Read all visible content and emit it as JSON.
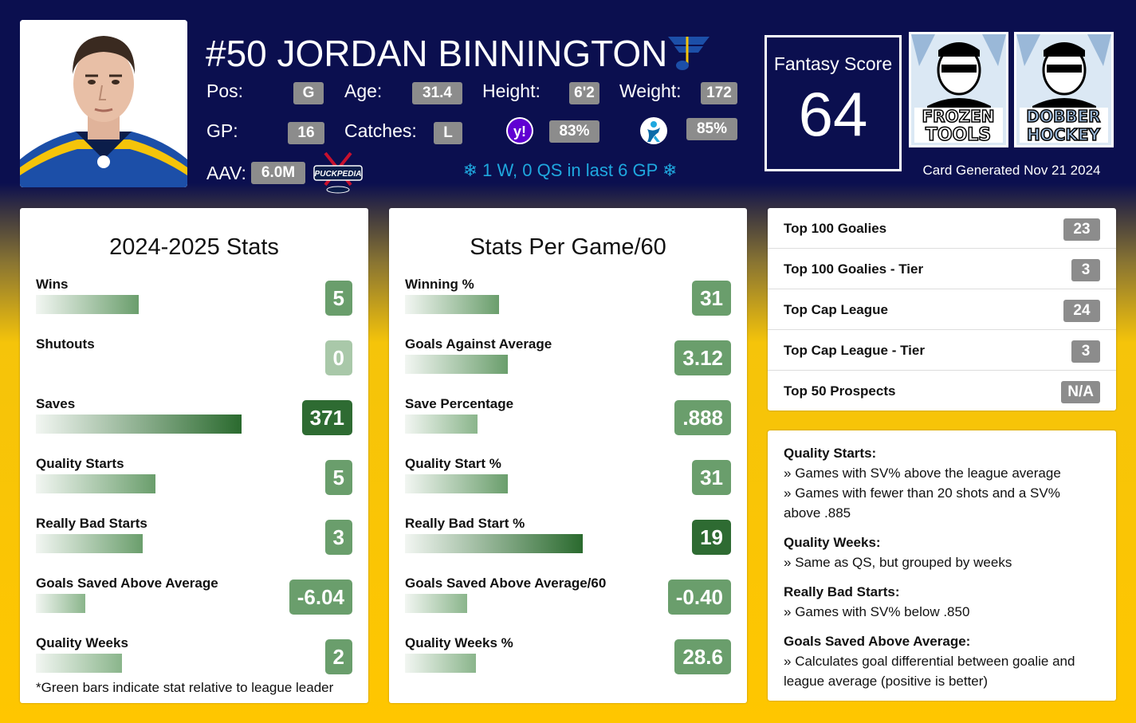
{
  "header": {
    "player_name": "#50 JORDAN BINNINGTON",
    "pos_label": "Pos:",
    "pos": "G",
    "age_label": "Age:",
    "age": "31.4",
    "height_label": "Height:",
    "height": "6'2",
    "weight_label": "Weight:",
    "weight": "172",
    "gp_label": "GP:",
    "gp": "16",
    "catches_label": "Catches:",
    "catches": "L",
    "yahoo_pct": "83%",
    "espn_pct": "85%",
    "aav_label": "AAV:",
    "aav": "6.0M",
    "recent": "❄ 1 W, 0 QS in last 6 GP ❄"
  },
  "fantasy": {
    "label": "Fantasy Score",
    "value": "64"
  },
  "logos": {
    "frozen": [
      "FROZEN",
      "TOOLS"
    ],
    "dobber": [
      "DOBBER",
      "HOCKEY"
    ],
    "puckpedia": "PUCKPEDIA"
  },
  "card_generated": "Card Generated Nov 21 2024",
  "season_stats": {
    "title": "2024-2025 Stats",
    "rows": [
      {
        "label": "Wins",
        "value": "5",
        "pct": 0.5
      },
      {
        "label": "Shutouts",
        "value": "0",
        "pct": 0.0
      },
      {
        "label": "Saves",
        "value": "371",
        "pct": 1.0
      },
      {
        "label": "Quality Starts",
        "value": "5",
        "pct": 0.58
      },
      {
        "label": "Really Bad Starts",
        "value": "3",
        "pct": 0.52
      },
      {
        "label": "Goals Saved Above Average",
        "value": "-6.04",
        "pct": 0.24
      },
      {
        "label": "Quality Weeks",
        "value": "2",
        "pct": 0.42
      }
    ],
    "footnote": "*Green bars indicate stat relative to league leader"
  },
  "per_game": {
    "title": "Stats Per Game/60",
    "rows": [
      {
        "label": "Winning %",
        "value": "31",
        "pct": 0.53
      },
      {
        "label": "Goals Against Average",
        "value": "3.12",
        "pct": 0.58
      },
      {
        "label": "Save Percentage",
        "value": ".888",
        "pct": 0.41
      },
      {
        "label": "Quality Start %",
        "value": "31",
        "pct": 0.58
      },
      {
        "label": "Really Bad Start %",
        "value": "19",
        "pct": 1.0
      },
      {
        "label": "Goals Saved Above Average/60",
        "value": "-0.40",
        "pct": 0.35
      },
      {
        "label": "Quality Weeks %",
        "value": "28.6",
        "pct": 0.4
      }
    ]
  },
  "rankings": [
    {
      "label": "Top 100 Goalies",
      "value": "23"
    },
    {
      "label": "Top 100 Goalies - Tier",
      "value": "3"
    },
    {
      "label": "Top Cap League",
      "value": "24"
    },
    {
      "label": "Top Cap League - Tier",
      "value": "3"
    },
    {
      "label": "Top 50 Prospects",
      "value": "N/A"
    }
  ],
  "legend": [
    {
      "title": "Quality Starts:",
      "items": [
        "Games with SV% above the league average",
        "Games with fewer than 20 shots and a SV% above .885"
      ]
    },
    {
      "title": "Quality Weeks:",
      "items": [
        "Same as QS, but grouped by weeks"
      ]
    },
    {
      "title": "Really Bad Starts:",
      "items": [
        "Games with SV% below .850"
      ]
    },
    {
      "title": "Goals Saved Above Average:",
      "items": [
        "Calculates goal differential between goalie and league average (positive is better)"
      ]
    }
  ],
  "colors": {
    "navy": "#0b0f4f",
    "gold": "#ffc600",
    "badge_gray": "#8c8c8c",
    "green_dark": "#2e6b32",
    "green_mid": "#6a9e6c",
    "green_light": "#a9c8a9",
    "ice_blue": "#1fa8df"
  }
}
